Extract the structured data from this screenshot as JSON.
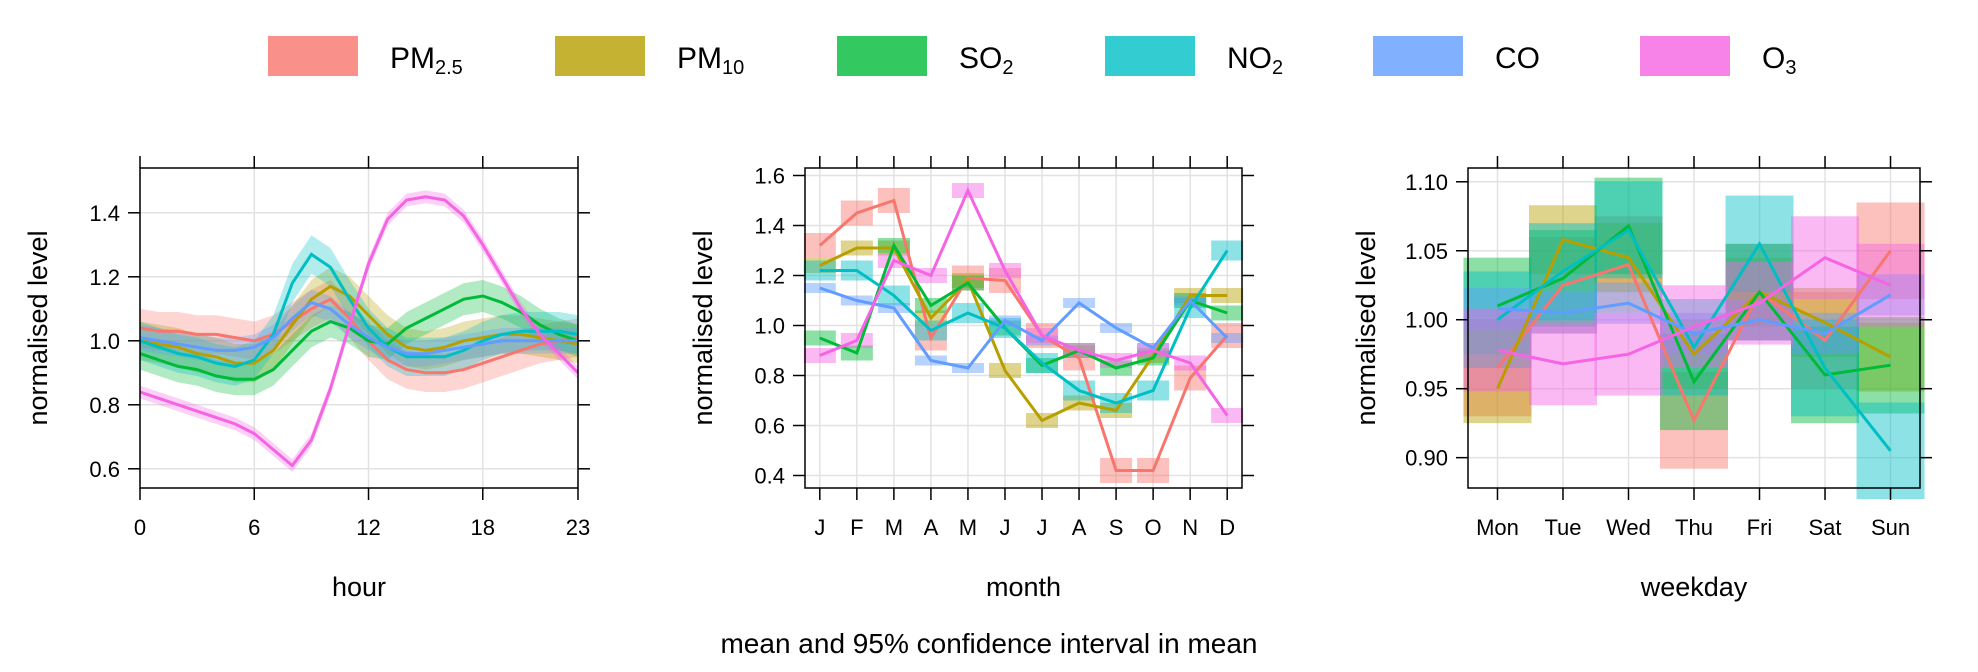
{
  "legend": [
    {
      "base": "PM",
      "sub": "2.5",
      "color": "#F8766D"
    },
    {
      "base": "PM",
      "sub": "10",
      "color": "#B79F00"
    },
    {
      "base": "SO",
      "sub": "2",
      "color": "#00BA38"
    },
    {
      "base": "NO",
      "sub": "2",
      "color": "#00BFC4"
    },
    {
      "base": "CO",
      "sub": "",
      "color": "#619CFF"
    },
    {
      "base": "O",
      "sub": "3",
      "color": "#F564E3"
    }
  ],
  "caption": "mean and 95% confidence interval in mean",
  "chart_data": [
    {
      "type": "line",
      "xlabel": "hour",
      "ylabel": "normalised level",
      "xlim": [
        0,
        23
      ],
      "ylim": [
        0.54,
        1.54
      ],
      "xticks": [
        0,
        6,
        12,
        18,
        23
      ],
      "yticks": [
        0.6,
        0.8,
        1.0,
        1.2,
        1.4
      ],
      "ytick_labels": [
        "0.6",
        "0.8",
        "1.0",
        "1.2",
        "1.4"
      ],
      "band_halfwidth": [
        0.06,
        0.06,
        0.05,
        0.06,
        0.04,
        0.02
      ],
      "x": [
        0,
        1,
        2,
        3,
        4,
        5,
        6,
        7,
        8,
        9,
        10,
        11,
        12,
        13,
        14,
        15,
        16,
        17,
        18,
        19,
        20,
        21,
        22,
        23
      ],
      "series": [
        {
          "name": "PM2.5",
          "color": "#F8766D",
          "values": [
            1.04,
            1.03,
            1.03,
            1.02,
            1.02,
            1.01,
            1.0,
            1.02,
            1.06,
            1.1,
            1.13,
            1.07,
            1.0,
            0.94,
            0.91,
            0.9,
            0.9,
            0.91,
            0.93,
            0.95,
            0.97,
            0.99,
            1.0,
            1.01
          ]
        },
        {
          "name": "PM10",
          "color": "#B79F00",
          "values": [
            1.0,
            0.99,
            0.98,
            0.96,
            0.95,
            0.93,
            0.93,
            0.97,
            1.05,
            1.13,
            1.17,
            1.14,
            1.08,
            1.02,
            0.98,
            0.97,
            0.98,
            1.0,
            1.01,
            1.02,
            1.02,
            1.01,
            1.0,
            0.99
          ]
        },
        {
          "name": "SO2",
          "color": "#00BA38",
          "values": [
            0.96,
            0.94,
            0.92,
            0.91,
            0.89,
            0.88,
            0.88,
            0.91,
            0.97,
            1.03,
            1.06,
            1.04,
            1.0,
            0.99,
            1.04,
            1.07,
            1.1,
            1.13,
            1.14,
            1.12,
            1.09,
            1.05,
            1.02,
            1.0
          ]
        },
        {
          "name": "NO2",
          "color": "#00BFC4",
          "values": [
            1.0,
            0.98,
            0.96,
            0.95,
            0.93,
            0.92,
            0.94,
            1.02,
            1.18,
            1.27,
            1.23,
            1.13,
            1.04,
            0.98,
            0.95,
            0.95,
            0.95,
            0.97,
            1.0,
            1.02,
            1.03,
            1.03,
            1.03,
            1.02
          ]
        },
        {
          "name": "CO",
          "color": "#619CFF",
          "values": [
            1.01,
            1.0,
            0.99,
            0.98,
            0.97,
            0.97,
            0.98,
            1.01,
            1.07,
            1.12,
            1.1,
            1.05,
            1.01,
            0.98,
            0.96,
            0.96,
            0.97,
            0.98,
            0.99,
            1.0,
            1.0,
            1.0,
            1.0,
            1.0
          ]
        },
        {
          "name": "O3",
          "color": "#F564E3",
          "values": [
            0.84,
            0.82,
            0.8,
            0.78,
            0.76,
            0.74,
            0.71,
            0.66,
            0.61,
            0.69,
            0.85,
            1.05,
            1.24,
            1.38,
            1.44,
            1.45,
            1.44,
            1.39,
            1.3,
            1.2,
            1.1,
            1.02,
            0.96,
            0.9
          ]
        }
      ]
    },
    {
      "type": "line",
      "xlabel": "month",
      "ylabel": "normalised level",
      "xlim": [
        0.6,
        12.4
      ],
      "ylim": [
        0.35,
        1.63
      ],
      "xticks": [
        1,
        2,
        3,
        4,
        5,
        6,
        7,
        8,
        9,
        10,
        11,
        12
      ],
      "xtick_labels": [
        "J",
        "F",
        "M",
        "A",
        "M",
        "J",
        "J",
        "A",
        "S",
        "O",
        "N",
        "D"
      ],
      "yticks": [
        0.4,
        0.6,
        0.8,
        1.0,
        1.2,
        1.4,
        1.6
      ],
      "ytick_labels": [
        "0.4",
        "0.6",
        "0.8",
        "1.0",
        "1.2",
        "1.4",
        "1.6"
      ],
      "band_halfwidth": [
        0.05,
        0.03,
        0.03,
        0.04,
        0.02,
        0.03
      ],
      "x": [
        1,
        2,
        3,
        4,
        5,
        6,
        7,
        8,
        9,
        10,
        11,
        12
      ],
      "series": [
        {
          "name": "PM2.5",
          "color": "#F8766D",
          "values": [
            1.32,
            1.45,
            1.5,
            0.95,
            1.19,
            1.18,
            0.96,
            0.87,
            0.42,
            0.42,
            0.79,
            0.96
          ]
        },
        {
          "name": "PM10",
          "color": "#B79F00",
          "values": [
            1.24,
            1.31,
            1.31,
            1.03,
            1.18,
            0.82,
            0.62,
            0.69,
            0.66,
            0.88,
            1.12,
            1.12
          ]
        },
        {
          "name": "SO2",
          "color": "#00BA38",
          "values": [
            0.95,
            0.89,
            1.32,
            1.08,
            1.17,
            0.99,
            0.84,
            0.9,
            0.83,
            0.87,
            1.1,
            1.05
          ]
        },
        {
          "name": "NO2",
          "color": "#00BFC4",
          "values": [
            1.22,
            1.22,
            1.12,
            0.98,
            1.05,
            0.99,
            0.85,
            0.74,
            0.69,
            0.74,
            1.07,
            1.3
          ]
        },
        {
          "name": "CO",
          "color": "#619CFF",
          "values": [
            1.15,
            1.1,
            1.07,
            0.86,
            0.83,
            1.02,
            0.94,
            1.09,
            0.99,
            0.91,
            1.1,
            0.95
          ]
        },
        {
          "name": "O3",
          "color": "#F564E3",
          "values": [
            0.88,
            0.94,
            1.26,
            1.2,
            1.54,
            1.22,
            0.96,
            0.9,
            0.86,
            0.9,
            0.85,
            0.64
          ]
        }
      ]
    },
    {
      "type": "line",
      "xlabel": "weekday",
      "ylabel": "normalised level",
      "xlim": [
        0.55,
        7.45
      ],
      "ylim": [
        0.878,
        1.11
      ],
      "xticks": [
        1,
        2,
        3,
        4,
        5,
        6,
        7
      ],
      "xtick_labels": [
        "Mon",
        "Tue",
        "Wed",
        "Thu",
        "Fri",
        "Sat",
        "Sun"
      ],
      "yticks": [
        0.9,
        0.95,
        1.0,
        1.05,
        1.1
      ],
      "ytick_labels": [
        "0.90",
        "0.95",
        "1.00",
        "1.05",
        "1.10"
      ],
      "band_halfwidth": [
        0.035,
        0.025,
        0.035,
        0.035,
        0.015,
        0.03
      ],
      "x": [
        1,
        2,
        3,
        4,
        5,
        6,
        7
      ],
      "series": [
        {
          "name": "PM2.5",
          "color": "#F8766D",
          "values": [
            0.965,
            1.025,
            1.04,
            0.927,
            1.02,
            0.985,
            1.05
          ]
        },
        {
          "name": "PM10",
          "color": "#B79F00",
          "values": [
            0.95,
            1.058,
            1.045,
            0.975,
            1.02,
            0.998,
            0.973
          ]
        },
        {
          "name": "SO2",
          "color": "#00BA38",
          "values": [
            1.01,
            1.03,
            1.068,
            0.955,
            1.02,
            0.96,
            0.967
          ]
        },
        {
          "name": "NO2",
          "color": "#00BFC4",
          "values": [
            1.0,
            1.035,
            1.065,
            0.98,
            1.055,
            0.965,
            0.905
          ]
        },
        {
          "name": "CO",
          "color": "#619CFF",
          "values": [
            1.008,
            1.005,
            1.012,
            0.99,
            1.0,
            0.99,
            1.018
          ]
        },
        {
          "name": "O3",
          "color": "#F564E3",
          "values": [
            0.978,
            0.968,
            0.975,
            0.995,
            1.012,
            1.045,
            1.025
          ]
        }
      ]
    }
  ]
}
